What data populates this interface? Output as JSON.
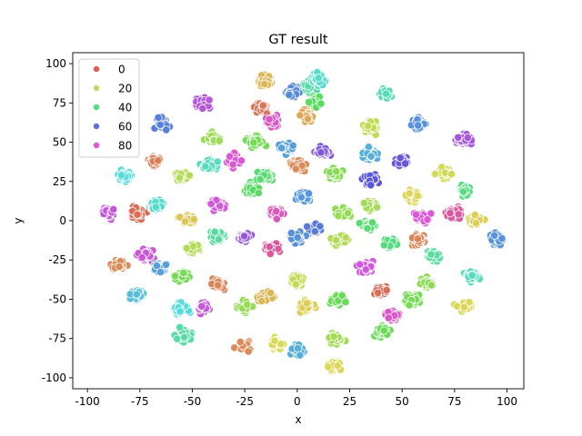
{
  "chart_data": {
    "type": "scatter",
    "title": "GT result",
    "xlabel": "x",
    "ylabel": "y",
    "xlim": [
      -107,
      108
    ],
    "ylim": [
      -107,
      107
    ],
    "xticks": [
      -100,
      -75,
      -50,
      -25,
      0,
      25,
      50,
      75,
      100
    ],
    "yticks": [
      -100,
      -75,
      -50,
      -25,
      0,
      25,
      50,
      75,
      100
    ],
    "grid": false,
    "legend_position": "upper-left",
    "legend": [
      {
        "label": "0",
        "color": "#db5f57"
      },
      {
        "label": "20",
        "color": "#b9db57"
      },
      {
        "label": "40",
        "color": "#57db80"
      },
      {
        "label": "60",
        "color": "#5e6fdb"
      },
      {
        "label": "80",
        "color": "#d857db"
      }
    ],
    "hue_range": [
      0,
      99
    ],
    "clusters": [
      {
        "x": -15,
        "y": 89,
        "hue": 12
      },
      {
        "x": 5,
        "y": 85,
        "hue": 45
      },
      {
        "x": 10,
        "y": 90,
        "hue": 50
      },
      {
        "x": -2,
        "y": 82,
        "hue": 63
      },
      {
        "x": 8,
        "y": 75,
        "hue": 35
      },
      {
        "x": 42,
        "y": 81,
        "hue": 47
      },
      {
        "x": -65,
        "y": 62,
        "hue": 64
      },
      {
        "x": -45,
        "y": 75,
        "hue": 82
      },
      {
        "x": -17,
        "y": 72,
        "hue": 3
      },
      {
        "x": -12,
        "y": 63,
        "hue": 90
      },
      {
        "x": 5,
        "y": 67,
        "hue": 10
      },
      {
        "x": 35,
        "y": 60,
        "hue": 20
      },
      {
        "x": 58,
        "y": 62,
        "hue": 62
      },
      {
        "x": 80,
        "y": 52,
        "hue": 80
      },
      {
        "x": -40,
        "y": 52,
        "hue": 25
      },
      {
        "x": -20,
        "y": 50,
        "hue": 30
      },
      {
        "x": -5,
        "y": 47,
        "hue": 60
      },
      {
        "x": 12,
        "y": 44,
        "hue": 75
      },
      {
        "x": 35,
        "y": 42,
        "hue": 58
      },
      {
        "x": 50,
        "y": 38,
        "hue": 72
      },
      {
        "x": 70,
        "y": 30,
        "hue": 18
      },
      {
        "x": -82,
        "y": 28,
        "hue": 52
      },
      {
        "x": -68,
        "y": 38,
        "hue": 4
      },
      {
        "x": -55,
        "y": 28,
        "hue": 22
      },
      {
        "x": -42,
        "y": 35,
        "hue": 48
      },
      {
        "x": -30,
        "y": 38,
        "hue": 88
      },
      {
        "x": -15,
        "y": 28,
        "hue": 38
      },
      {
        "x": 0,
        "y": 35,
        "hue": 6
      },
      {
        "x": 18,
        "y": 30,
        "hue": 28
      },
      {
        "x": 35,
        "y": 26,
        "hue": 70
      },
      {
        "x": 55,
        "y": 15,
        "hue": 16
      },
      {
        "x": 80,
        "y": 20,
        "hue": 40
      },
      {
        "x": -90,
        "y": 5,
        "hue": 84
      },
      {
        "x": -75,
        "y": 5,
        "hue": 2
      },
      {
        "x": -67,
        "y": 10,
        "hue": 50
      },
      {
        "x": -52,
        "y": 0,
        "hue": 14
      },
      {
        "x": -38,
        "y": 10,
        "hue": 86
      },
      {
        "x": -22,
        "y": 20,
        "hue": 36
      },
      {
        "x": -10,
        "y": 5,
        "hue": 92
      },
      {
        "x": 3,
        "y": 15,
        "hue": 61
      },
      {
        "x": 8,
        "y": -5,
        "hue": 65
      },
      {
        "x": 22,
        "y": 5,
        "hue": 26
      },
      {
        "x": 35,
        "y": 10,
        "hue": 24
      },
      {
        "x": 60,
        "y": 2,
        "hue": 88
      },
      {
        "x": 75,
        "y": 5,
        "hue": 95
      },
      {
        "x": 85,
        "y": 0,
        "hue": 15
      },
      {
        "x": 95,
        "y": -12,
        "hue": 62
      },
      {
        "x": -85,
        "y": -28,
        "hue": 6
      },
      {
        "x": -72,
        "y": -22,
        "hue": 85
      },
      {
        "x": -65,
        "y": -30,
        "hue": 60
      },
      {
        "x": -50,
        "y": -18,
        "hue": 22
      },
      {
        "x": -38,
        "y": -10,
        "hue": 44
      },
      {
        "x": -25,
        "y": -10,
        "hue": 78
      },
      {
        "x": -12,
        "y": -18,
        "hue": 96
      },
      {
        "x": 0,
        "y": -10,
        "hue": 62
      },
      {
        "x": 20,
        "y": -12,
        "hue": 22
      },
      {
        "x": 33,
        "y": -3,
        "hue": 38
      },
      {
        "x": 45,
        "y": -15,
        "hue": 40
      },
      {
        "x": 58,
        "y": -12,
        "hue": 5
      },
      {
        "x": 65,
        "y": -22,
        "hue": 44
      },
      {
        "x": 83,
        "y": -35,
        "hue": 48
      },
      {
        "x": -76,
        "y": -47,
        "hue": 56
      },
      {
        "x": -55,
        "y": -35,
        "hue": 30
      },
      {
        "x": -38,
        "y": -40,
        "hue": 5
      },
      {
        "x": -25,
        "y": -55,
        "hue": 26
      },
      {
        "x": -15,
        "y": -48,
        "hue": 12
      },
      {
        "x": 0,
        "y": -38,
        "hue": 20
      },
      {
        "x": 5,
        "y": -55,
        "hue": 15
      },
      {
        "x": 20,
        "y": -50,
        "hue": 32
      },
      {
        "x": 33,
        "y": -30,
        "hue": 86
      },
      {
        "x": 40,
        "y": -45,
        "hue": 2
      },
      {
        "x": 45,
        "y": -60,
        "hue": 90
      },
      {
        "x": 55,
        "y": -50,
        "hue": 30
      },
      {
        "x": 62,
        "y": -40,
        "hue": 27
      },
      {
        "x": 80,
        "y": -55,
        "hue": 16
      },
      {
        "x": -55,
        "y": -55,
        "hue": 52
      },
      {
        "x": -45,
        "y": -55,
        "hue": 84
      },
      {
        "x": -55,
        "y": -73,
        "hue": 45
      },
      {
        "x": -25,
        "y": -80,
        "hue": 6
      },
      {
        "x": -10,
        "y": -78,
        "hue": 17
      },
      {
        "x": 0,
        "y": -82,
        "hue": 58
      },
      {
        "x": 18,
        "y": -75,
        "hue": 24
      },
      {
        "x": 18,
        "y": -92,
        "hue": 16
      },
      {
        "x": 40,
        "y": -70,
        "hue": 32
      }
    ]
  }
}
